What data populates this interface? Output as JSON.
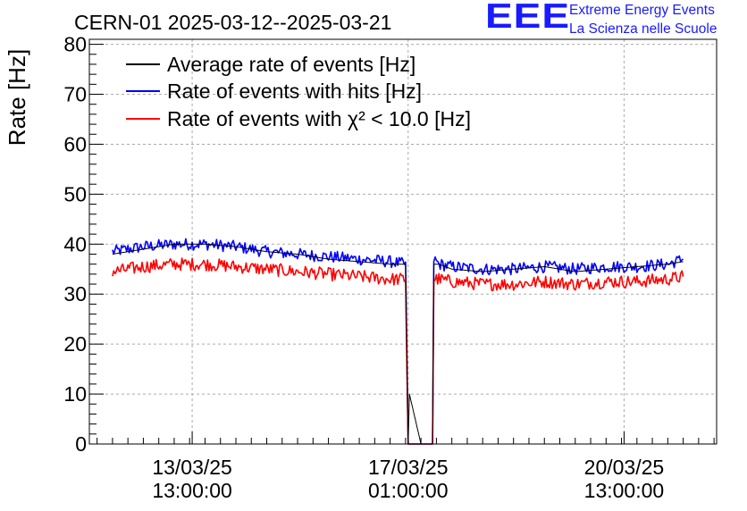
{
  "chart_data": {
    "type": "line",
    "title": "CERN-01 2025-03-12--2025-03-21",
    "ylabel": "Rate [Hz]",
    "xlabel": "",
    "ylim": [
      0,
      81
    ],
    "yticks": [
      0,
      10,
      20,
      30,
      40,
      50,
      60,
      70,
      80
    ],
    "xlim": [
      "2025-03-11 21:00",
      "2025-03-22 01:00"
    ],
    "xticks": [
      {
        "date": "2025-03-13 13:00",
        "line1": "13/03/25",
        "line2": "13:00:00"
      },
      {
        "date": "2025-03-17 01:00",
        "line1": "17/03/25",
        "line2": "01:00:00"
      },
      {
        "date": "2025-03-20 13:00",
        "line1": "20/03/25",
        "line2": "13:00:00"
      }
    ],
    "grid": true,
    "legend_position": "top-left",
    "series": [
      {
        "name": "Average rate of events [Hz]",
        "color": "#000000",
        "x": [
          "2025-03-12 06:00",
          "2025-03-12 18:00",
          "2025-03-13 06:00",
          "2025-03-13 18:00",
          "2025-03-14 06:00",
          "2025-03-14 18:00",
          "2025-03-15 06:00",
          "2025-03-15 18:00",
          "2025-03-16 06:00",
          "2025-03-16 18:00",
          "2025-03-17 00:00",
          "2025-03-17 01:00",
          "2025-03-17 01:30",
          "2025-03-17 06:00",
          "2025-03-17 10:30",
          "2025-03-17 11:00",
          "2025-03-17 13:00",
          "2025-03-17 18:00",
          "2025-03-18 06:00",
          "2025-03-18 18:00",
          "2025-03-19 06:00",
          "2025-03-19 18:00",
          "2025-03-20 06:00",
          "2025-03-20 18:00",
          "2025-03-21 06:00",
          "2025-03-21 12:00"
        ],
        "y": [
          38,
          39,
          40,
          40,
          39.5,
          38.5,
          38,
          37,
          36.5,
          36,
          36,
          0,
          10,
          0,
          0,
          36,
          36,
          35,
          34.5,
          35,
          35.5,
          34.5,
          35,
          35.5,
          36,
          36.5
        ]
      },
      {
        "name": "Rate of events with hits [Hz]",
        "color": "#0000ff",
        "x": [
          "2025-03-12 06:00",
          "2025-03-12 18:00",
          "2025-03-13 06:00",
          "2025-03-13 18:00",
          "2025-03-14 06:00",
          "2025-03-14 18:00",
          "2025-03-15 06:00",
          "2025-03-15 18:00",
          "2025-03-16 06:00",
          "2025-03-16 18:00",
          "2025-03-17 00:00",
          "2025-03-17 01:00",
          "2025-03-17 06:00",
          "2025-03-17 10:30",
          "2025-03-17 11:00",
          "2025-03-17 13:00",
          "2025-03-17 18:00",
          "2025-03-18 06:00",
          "2025-03-18 18:00",
          "2025-03-19 06:00",
          "2025-03-19 18:00",
          "2025-03-20 06:00",
          "2025-03-20 18:00",
          "2025-03-21 06:00",
          "2025-03-21 12:00"
        ],
        "y": [
          38.5,
          39.5,
          40,
          40,
          39.5,
          38.5,
          38,
          37.5,
          37,
          36.5,
          36,
          0,
          0,
          0,
          37,
          36,
          35.5,
          35,
          35,
          35.5,
          35,
          35.5,
          35.5,
          36,
          37
        ],
        "noise": 1.2
      },
      {
        "name": "Rate of events with χ² < 10.0 [Hz]",
        "color": "#ff0000",
        "x": [
          "2025-03-12 06:00",
          "2025-03-12 18:00",
          "2025-03-13 06:00",
          "2025-03-13 18:00",
          "2025-03-14 06:00",
          "2025-03-14 18:00",
          "2025-03-15 06:00",
          "2025-03-15 18:00",
          "2025-03-16 06:00",
          "2025-03-16 18:00",
          "2025-03-17 00:00",
          "2025-03-17 01:00",
          "2025-03-17 06:00",
          "2025-03-17 10:30",
          "2025-03-17 11:00",
          "2025-03-17 13:00",
          "2025-03-17 18:00",
          "2025-03-18 06:00",
          "2025-03-18 18:00",
          "2025-03-19 06:00",
          "2025-03-19 18:00",
          "2025-03-20 06:00",
          "2025-03-20 18:00",
          "2025-03-21 06:00",
          "2025-03-21 12:00"
        ],
        "y": [
          34.5,
          35.5,
          36,
          36,
          35.5,
          35,
          34.5,
          34,
          33.5,
          33,
          33,
          0,
          0,
          0,
          33,
          33,
          32.5,
          32,
          32,
          32.5,
          32,
          32.5,
          32.5,
          33,
          33.5
        ],
        "noise": 1.3
      }
    ]
  },
  "logo": {
    "letters": "EEE",
    "line1": "Extreme Energy Events",
    "line2": "La Scienza nelle Scuole",
    "color": "#1a1aff"
  }
}
